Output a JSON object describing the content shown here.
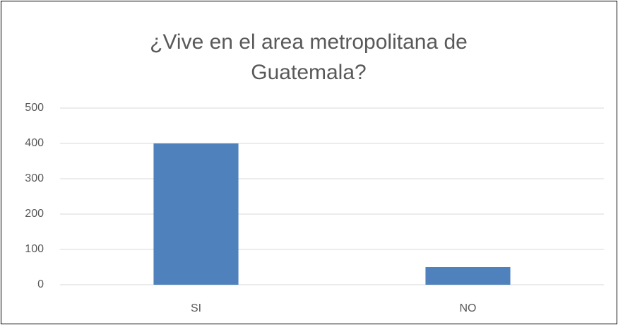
{
  "chart_data": {
    "type": "bar",
    "title": "¿Vive en el area metropolitana de Guatemala?",
    "categories": [
      "SI",
      "NO"
    ],
    "values": [
      400,
      50
    ],
    "color": "#4f81bd",
    "ylim": [
      0,
      500
    ],
    "yticks": [
      0,
      100,
      200,
      300,
      400,
      500
    ],
    "grid": true
  }
}
